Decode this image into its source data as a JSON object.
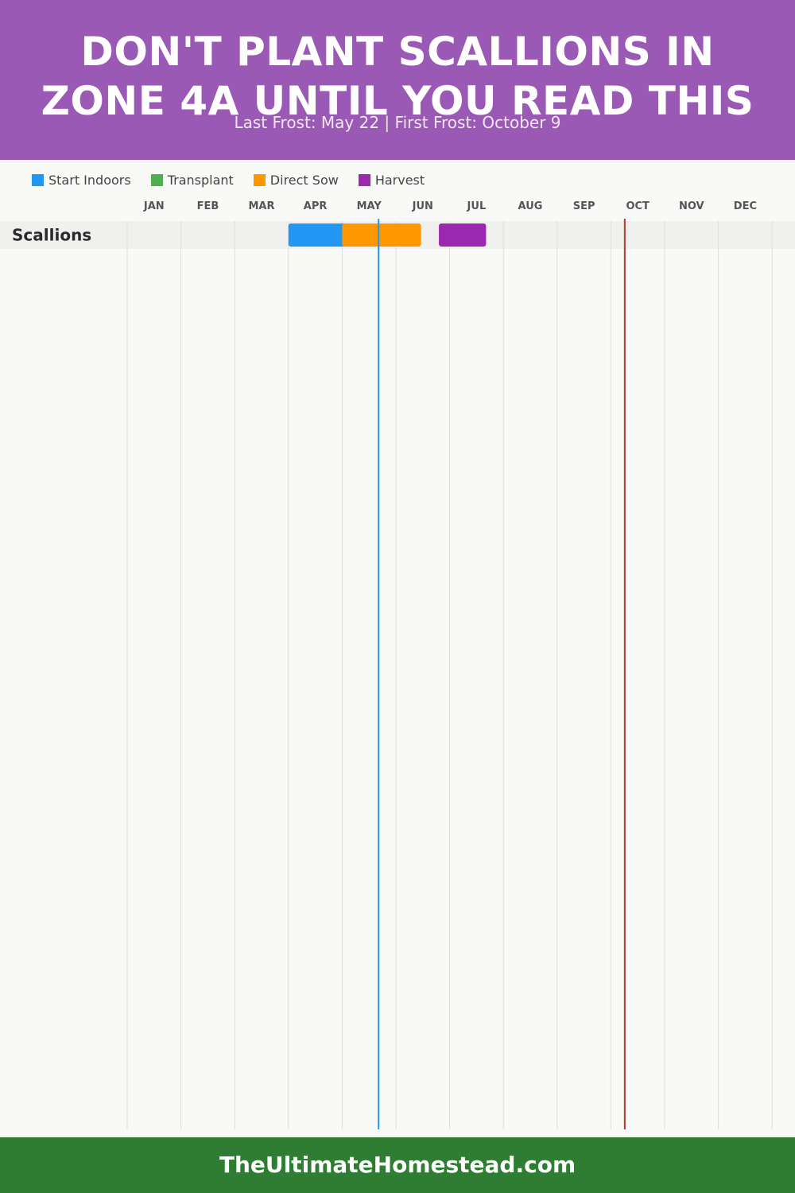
{
  "header": {
    "title_line1": "DON'T PLANT SCALLIONS IN",
    "title_line2": "ZONE 4A UNTIL YOU READ THIS",
    "subtitle": "Last Frost: May 22 | First Frost: October 9",
    "background": "#9b59b6"
  },
  "legend": [
    {
      "label": "Start Indoors",
      "color": "#2196f3"
    },
    {
      "label": "Transplant",
      "color": "#4caf50"
    },
    {
      "label": "Direct Sow",
      "color": "#ff9800"
    },
    {
      "label": "Harvest",
      "color": "#9c27b0"
    }
  ],
  "chart_data": {
    "type": "gantt",
    "months": [
      "JAN",
      "FEB",
      "MAR",
      "APR",
      "MAY",
      "JUN",
      "JUL",
      "AUG",
      "SEP",
      "OCT",
      "NOV",
      "DEC"
    ],
    "rows": [
      {
        "crop": "Scallions",
        "segments": [
          {
            "activity": "Start Indoors",
            "start": "Apr 1",
            "end": "May 7",
            "color": "#2196f3"
          },
          {
            "activity": "Direct Sow",
            "start": "May 1",
            "end": "Jun 15",
            "color": "#ff9800"
          },
          {
            "activity": "Harvest",
            "start": "Jun 25",
            "end": "Jul 22",
            "color": "#9c27b0"
          }
        ]
      }
    ],
    "frost_lines": [
      {
        "label": "Last Frost",
        "date": "May 22",
        "color": "#2196f3"
      },
      {
        "label": "First Frost",
        "date": "Oct 9",
        "color": "#b03a2e"
      }
    ]
  },
  "footer": {
    "text": "TheUltimateHomestead.com",
    "background": "#2e7d32"
  }
}
